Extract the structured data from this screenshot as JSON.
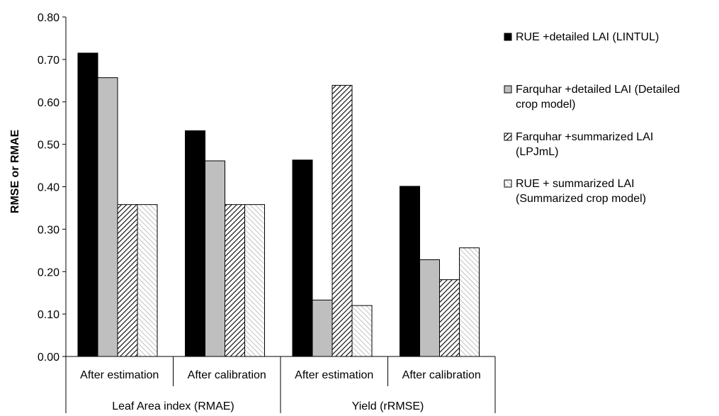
{
  "chart_data": {
    "type": "bar",
    "ylabel": "RMSE or RMAE",
    "ylim": [
      0,
      0.8
    ],
    "yticks": [
      "0.00",
      "0.10",
      "0.20",
      "0.30",
      "0.40",
      "0.50",
      "0.60",
      "0.70",
      "0.80"
    ],
    "grid": false,
    "legend_position": "right",
    "categories": [
      "After estimation",
      "After calibration",
      "After estimation",
      "After calibration"
    ],
    "groups": [
      {
        "label": "Leaf Area index (RMAE)",
        "span": 2
      },
      {
        "label": "Yield (rRMSE)",
        "span": 2
      }
    ],
    "series": [
      {
        "name": "RUE +detailed LAI (LINTUL)",
        "fill": "#000000",
        "pattern": "solid",
        "values": [
          0.715,
          0.532,
          0.463,
          0.401
        ]
      },
      {
        "name": "Farquhar  +detailed LAI (Detailed crop model)",
        "fill": "#bfbfbf",
        "pattern": "solid",
        "values": [
          0.657,
          0.461,
          0.133,
          0.228
        ]
      },
      {
        "name": "Farquhar +summarized  LAI (LPJmL)",
        "fill": "#ffffff",
        "pattern": "dense-diagonal",
        "values": [
          0.358,
          0.358,
          0.639,
          0.181
        ]
      },
      {
        "name": "RUE + summarized LAI (Summarized crop model)",
        "fill": "#ffffff",
        "pattern": "light-diagonal",
        "values": [
          0.358,
          0.358,
          0.12,
          0.256
        ]
      }
    ]
  }
}
